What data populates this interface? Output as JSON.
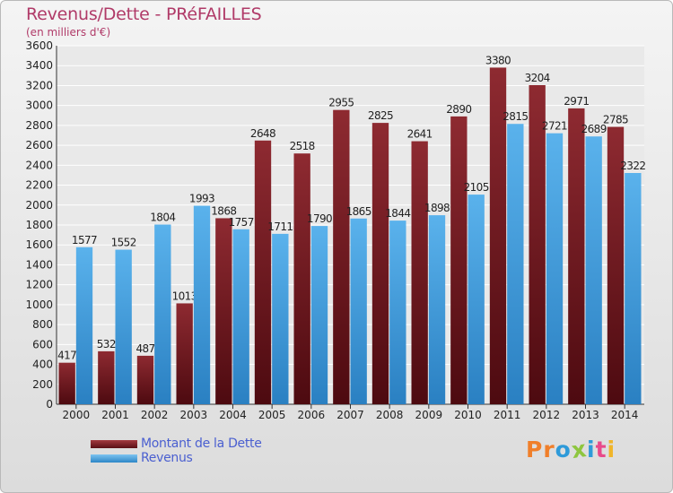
{
  "title": "Revenus/Dette - PRéFAILLES",
  "subtitle": "(en milliers d'€)",
  "colors": {
    "dette": "#7b2026",
    "revenus": "#4aa4e2",
    "title": "#b03a68",
    "legend_text": "#4a5fd0"
  },
  "chart_data": {
    "type": "bar",
    "title": "Revenus/Dette - PRéFAILLES",
    "subtitle": "(en milliers d'€)",
    "categories": [
      "2000",
      "2001",
      "2002",
      "2003",
      "2004",
      "2005",
      "2006",
      "2007",
      "2008",
      "2009",
      "2010",
      "2011",
      "2012",
      "2013",
      "2014"
    ],
    "series": [
      {
        "name": "Montant de la Dette",
        "color": "#7b2026",
        "values": [
          417,
          532,
          487,
          1013,
          1868,
          2648,
          2518,
          2955,
          2825,
          2641,
          2890,
          3380,
          3204,
          2971,
          2785
        ]
      },
      {
        "name": "Revenus",
        "color": "#4aa4e2",
        "values": [
          1577,
          1552,
          1804,
          1993,
          1757,
          1711,
          1790,
          1865,
          1844,
          1898,
          2105,
          2815,
          2721,
          2689,
          2322
        ]
      }
    ],
    "ylim": [
      0,
      3600
    ],
    "yticks": [
      0,
      200,
      400,
      600,
      800,
      1000,
      1200,
      1400,
      1600,
      1800,
      2000,
      2200,
      2400,
      2600,
      2800,
      3000,
      3200,
      3400,
      3600
    ],
    "grid": true,
    "legend": "bottom-left"
  },
  "legend": {
    "items": [
      {
        "label": "Montant de la Dette",
        "color": "#7b2026"
      },
      {
        "label": "Revenus",
        "color": "#4aa4e2"
      }
    ]
  },
  "logo": {
    "letters": [
      "P",
      "r",
      "o",
      "x",
      "i",
      "t",
      "i"
    ],
    "colors": [
      "#f07f2a",
      "#f07f2a",
      "#2e9ad9",
      "#8ec63f",
      "#2e9ad9",
      "#e84a8a",
      "#f0b52a"
    ]
  }
}
